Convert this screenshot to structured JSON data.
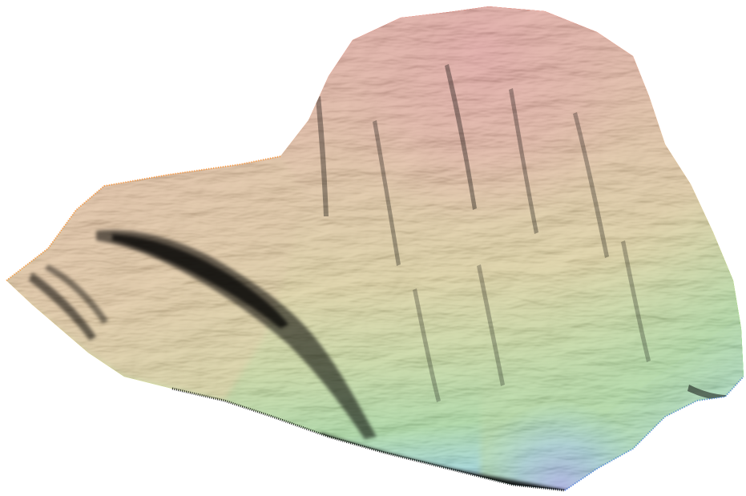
{
  "scene": {
    "background": "#ffffff",
    "colormap": {
      "high": "#ff1a00",
      "upper": "#ff7a00",
      "mid": "#f2c200",
      "lower": "#9ee000",
      "low_green": "#1fdc00",
      "cyan": "#00e0e0",
      "lowest": "#1030ff"
    },
    "shadow_color": "#000000"
  }
}
